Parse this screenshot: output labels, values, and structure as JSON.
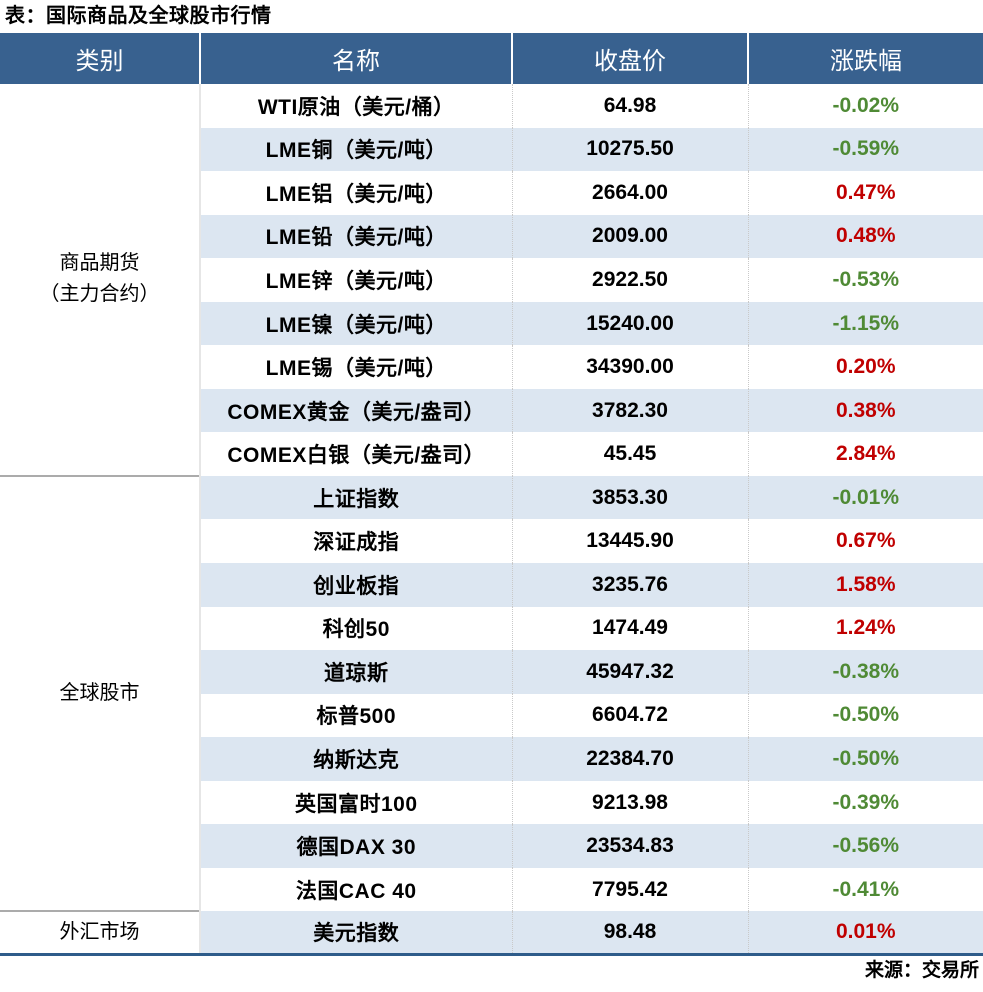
{
  "title": "表：国际商品及全球股市行情",
  "source": "来源：交易所",
  "colors": {
    "header_bg": "#38618F",
    "stripe_bg": "#DCE6F1",
    "up_red": "#C00000",
    "down_green": "#4F8A35",
    "bottom_border": "#2E5C8A"
  },
  "chart_data": {
    "type": "table",
    "title": "国际商品及全球股市行情",
    "columns": {
      "category": "类别",
      "name": "名称",
      "close": "收盘价",
      "change": "涨跌幅"
    },
    "groups": [
      {
        "category": "商品期货\n（主力合约）",
        "rows": [
          {
            "name": "WTI原油（美元/桶）",
            "close": "64.98",
            "change": "-0.02%"
          },
          {
            "name": "LME铜（美元/吨）",
            "close": "10275.50",
            "change": "-0.59%"
          },
          {
            "name": "LME铝（美元/吨）",
            "close": "2664.00",
            "change": "0.47%"
          },
          {
            "name": "LME铅（美元/吨）",
            "close": "2009.00",
            "change": "0.48%"
          },
          {
            "name": "LME锌（美元/吨）",
            "close": "2922.50",
            "change": "-0.53%"
          },
          {
            "name": "LME镍（美元/吨）",
            "close": "15240.00",
            "change": "-1.15%"
          },
          {
            "name": "LME锡（美元/吨）",
            "close": "34390.00",
            "change": "0.20%"
          },
          {
            "name": "COMEX黄金（美元/盎司）",
            "close": "3782.30",
            "change": "0.38%"
          },
          {
            "name": "COMEX白银（美元/盎司）",
            "close": "45.45",
            "change": "2.84%"
          }
        ]
      },
      {
        "category": "全球股市",
        "rows": [
          {
            "name": "上证指数",
            "close": "3853.30",
            "change": "-0.01%"
          },
          {
            "name": "深证成指",
            "close": "13445.90",
            "change": "0.67%"
          },
          {
            "name": "创业板指",
            "close": "3235.76",
            "change": "1.58%"
          },
          {
            "name": "科创50",
            "close": "1474.49",
            "change": "1.24%"
          },
          {
            "name": "道琼斯",
            "close": "45947.32",
            "change": "-0.38%"
          },
          {
            "name": "标普500",
            "close": "6604.72",
            "change": "-0.50%"
          },
          {
            "name": "纳斯达克",
            "close": "22384.70",
            "change": "-0.50%"
          },
          {
            "name": "英国富时100",
            "close": "9213.98",
            "change": "-0.39%"
          },
          {
            "name": "德国DAX 30",
            "close": "23534.83",
            "change": "-0.56%"
          },
          {
            "name": "法国CAC 40",
            "close": "7795.42",
            "change": "-0.41%"
          }
        ]
      },
      {
        "category": "外汇市场",
        "rows": [
          {
            "name": "美元指数",
            "close": "98.48",
            "change": "0.01%"
          }
        ]
      }
    ]
  }
}
